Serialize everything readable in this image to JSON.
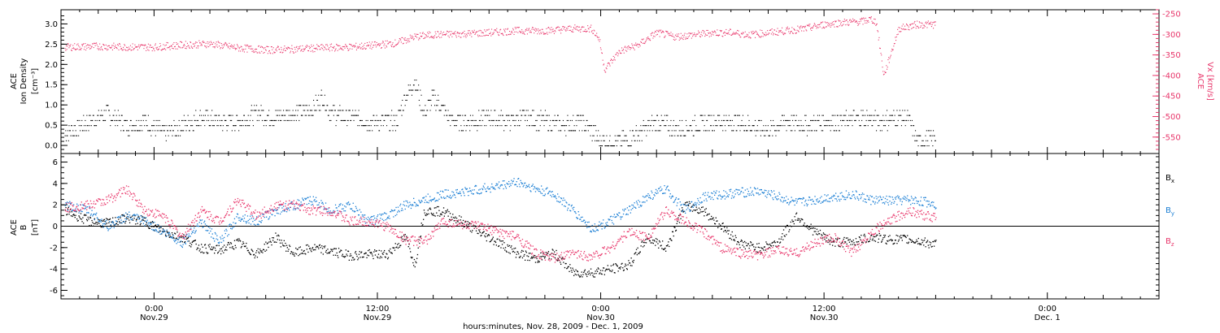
{
  "chart_data": [
    {
      "panel": "top",
      "type": "scatter",
      "ylabel_left": [
        "ACE",
        "Ion Density",
        "[cm⁻³]"
      ],
      "ylabel_right": [
        "ACE",
        "Vx [km/s]"
      ],
      "ylim_left": [
        -0.2,
        3.35
      ],
      "ylim_right": [
        -590,
        -240
      ],
      "yticks_left": [
        "0.0",
        "0.5",
        "1.0",
        "1.5",
        "2.0",
        "2.5",
        "3.0"
      ],
      "yticks_right": [
        "-250",
        "-300",
        "-350",
        "-400",
        "-450",
        "-500",
        "-550"
      ],
      "left_axis_color": "#000000",
      "right_axis_color": "#e8356a",
      "series": [
        {
          "axis": "left",
          "color": "#000000",
          "x": [
            -4.8,
            -3.5,
            -2.5,
            -1.5,
            -0.5,
            0.5,
            1.5,
            2.5,
            3.5,
            4.5,
            5.5,
            6.5,
            7.5,
            8.5,
            9.0,
            9.5,
            10.5,
            11.5,
            12.5,
            13.0,
            13.5,
            14.0,
            14.5,
            15.0,
            16.0,
            17.0,
            18.0,
            19.0,
            20.0,
            21.0,
            22.0,
            23.0,
            24.0,
            25.0,
            26.0,
            27.0,
            28.0,
            29.0,
            30.0,
            31.0,
            32.0,
            33.0,
            34.0,
            35.0,
            36.0,
            37.0,
            38.0,
            39.0,
            40.0,
            40.5,
            41.0,
            42.0
          ],
          "y": [
            0.3,
            0.6,
            0.8,
            0.5,
            0.6,
            0.3,
            0.5,
            0.7,
            0.6,
            0.6,
            0.8,
            0.7,
            0.8,
            0.9,
            1.2,
            0.8,
            0.7,
            0.6,
            0.6,
            0.6,
            1.2,
            1.6,
            0.8,
            1.2,
            0.6,
            0.6,
            0.7,
            0.6,
            0.7,
            0.6,
            0.5,
            0.6,
            0.1,
            0.1,
            0.3,
            0.6,
            0.4,
            0.5,
            0.6,
            0.6,
            0.5,
            0.4,
            0.6,
            0.5,
            0.6,
            0.6,
            0.7,
            0.6,
            0.7,
            0.7,
            0.1,
            0.2
          ]
        },
        {
          "axis": "right",
          "color": "#e8356a",
          "x": [
            -4.8,
            -3.0,
            -1.5,
            0.0,
            1.5,
            3.0,
            4.5,
            6.0,
            7.5,
            9.0,
            10.5,
            12.0,
            13.0,
            14.0,
            15.0,
            16.5,
            18.0,
            19.5,
            21.0,
            22.5,
            23.5,
            23.9,
            24.2,
            25.0,
            26.0,
            27.0,
            28.0,
            29.0,
            30.0,
            31.0,
            32.0,
            33.0,
            34.0,
            35.0,
            36.0,
            37.0,
            38.0,
            38.5,
            38.8,
            39.2,
            40.0,
            40.5,
            41.0,
            42.0
          ],
          "y": [
            -330,
            -328,
            -330,
            -330,
            -325,
            -322,
            -332,
            -337,
            -335,
            -332,
            -330,
            -325,
            -320,
            -305,
            -300,
            -298,
            -295,
            -290,
            -290,
            -285,
            -285,
            -310,
            -385,
            -340,
            -325,
            -295,
            -305,
            -300,
            -295,
            -295,
            -300,
            -295,
            -290,
            -285,
            -275,
            -270,
            -268,
            -262,
            -270,
            -400,
            -285,
            -280,
            -275,
            -275
          ]
        }
      ]
    },
    {
      "panel": "bottom",
      "type": "scatter",
      "ylabel": [
        "ACE",
        "B",
        "[nT]"
      ],
      "ylim": [
        -6.8,
        6.8
      ],
      "yticks": [
        "6",
        "4",
        "2",
        "0",
        "-2",
        "-4",
        "-6"
      ],
      "zero_line": true,
      "legend_placement": "right",
      "series": [
        {
          "name": "Bx",
          "color": "#000000",
          "x": [
            -4.8,
            -3.5,
            -2.5,
            -1.5,
            -0.5,
            0.5,
            1.5,
            2.5,
            3.5,
            4.5,
            5.5,
            6.5,
            7.5,
            8.5,
            9.5,
            10.5,
            11.5,
            12.5,
            13.5,
            14.0,
            14.5,
            15.5,
            16.5,
            17.5,
            18.5,
            19.5,
            20.5,
            21.5,
            22.5,
            23.5,
            24.5,
            25.5,
            26.5,
            27.5,
            28.5,
            29.5,
            30.5,
            31.5,
            32.5,
            33.5,
            34.5,
            35.5,
            36.5,
            37.5,
            38.5,
            39.5,
            40.5,
            41.5,
            42.0
          ],
          "y": [
            1.5,
            0.5,
            0.3,
            0.8,
            0.5,
            -0.5,
            -1.0,
            -2.0,
            -2.2,
            -1.5,
            -2.6,
            -1.0,
            -2.5,
            -2.0,
            -2.3,
            -2.7,
            -2.6,
            -2.6,
            -1.0,
            -3.6,
            1.5,
            1.4,
            0.5,
            -0.6,
            -1.5,
            -2.5,
            -3.0,
            -2.5,
            -4.3,
            -4.3,
            -4.0,
            -3.6,
            -1.0,
            -2.0,
            2.0,
            1.5,
            0.0,
            -1.6,
            -2.0,
            -1.5,
            1.0,
            -0.5,
            -1.5,
            -1.4,
            -1.0,
            -1.2,
            -1.2,
            -1.5,
            -1.7
          ]
        },
        {
          "name": "By",
          "color": "#1a7ed4",
          "x": [
            -4.8,
            -3.5,
            -2.5,
            -1.5,
            -0.5,
            0.5,
            1.5,
            2.5,
            3.5,
            4.5,
            5.5,
            6.5,
            7.5,
            8.5,
            9.5,
            10.5,
            11.5,
            12.5,
            13.5,
            14.5,
            15.5,
            16.5,
            17.5,
            18.5,
            19.5,
            20.5,
            21.5,
            22.5,
            23.5,
            24.5,
            25.5,
            26.5,
            27.5,
            28.5,
            29.5,
            30.5,
            31.5,
            32.5,
            33.5,
            34.5,
            35.5,
            36.5,
            37.5,
            38.5,
            39.5,
            40.5,
            41.5,
            42.0
          ],
          "y": [
            2.0,
            1.5,
            0.0,
            1.0,
            0.5,
            -0.5,
            -1.5,
            0.5,
            -1.5,
            1.0,
            0.5,
            1.5,
            2.0,
            2.5,
            1.5,
            2.0,
            0.5,
            1.0,
            2.0,
            2.5,
            3.0,
            3.2,
            3.5,
            3.8,
            4.2,
            3.5,
            3.0,
            1.5,
            -0.2,
            0.5,
            1.5,
            2.8,
            3.5,
            1.5,
            2.8,
            3.0,
            3.2,
            3.3,
            2.8,
            2.2,
            2.5,
            2.8,
            3.0,
            2.5,
            2.4,
            2.5,
            2.3,
            2.1
          ]
        },
        {
          "name": "Bz",
          "color": "#e8356a",
          "x": [
            -4.8,
            -3.5,
            -2.5,
            -1.5,
            -0.5,
            0.5,
            1.5,
            2.5,
            3.5,
            4.5,
            5.5,
            6.5,
            7.5,
            8.5,
            9.5,
            10.5,
            11.5,
            12.5,
            13.5,
            14.5,
            15.5,
            16.5,
            17.5,
            18.5,
            19.5,
            20.5,
            21.5,
            22.5,
            23.5,
            24.5,
            25.5,
            26.5,
            27.5,
            28.5,
            29.5,
            30.5,
            31.5,
            32.5,
            33.5,
            34.5,
            35.5,
            36.5,
            37.5,
            38.5,
            39.5,
            40.5,
            41.5,
            42.0
          ],
          "y": [
            1.8,
            2.0,
            2.5,
            3.5,
            1.5,
            1.0,
            -1.0,
            1.5,
            0.5,
            2.5,
            1.0,
            2.0,
            2.0,
            1.5,
            1.5,
            0.5,
            0.5,
            0.0,
            -1.2,
            -1.5,
            0.5,
            0.2,
            0.0,
            -0.5,
            -1.0,
            -2.5,
            -3.0,
            -2.5,
            -2.8,
            -2.0,
            -0.5,
            -1.0,
            1.5,
            0.5,
            -0.5,
            -2.0,
            -2.5,
            -2.7,
            -2.2,
            -2.5,
            -1.5,
            -1.0,
            -2.5,
            -0.5,
            0.5,
            1.5,
            1.0,
            0.8
          ]
        }
      ]
    }
  ],
  "x_axis": {
    "range_hours": [
      -5.0,
      54.0
    ],
    "ticks": [
      {
        "hour": 0,
        "time": "0:00",
        "date": "Nov.29"
      },
      {
        "hour": 12,
        "time": "12:00",
        "date": "Nov.29"
      },
      {
        "hour": 24,
        "time": "0:00",
        "date": "Nov.30"
      },
      {
        "hour": 36,
        "time": "12:00",
        "date": "Nov.30"
      },
      {
        "hour": 48,
        "time": "0:00",
        "date": "Dec. 1"
      }
    ],
    "xlabel": "hours:minutes, Nov. 28, 2009 - Dec.  1, 2009"
  },
  "legend": {
    "bx": {
      "label": "B",
      "sub": "x",
      "color": "#000000"
    },
    "by": {
      "label": "B",
      "sub": "y",
      "color": "#1a7ed4"
    },
    "bz": {
      "label": "B",
      "sub": "z",
      "color": "#e8356a"
    }
  }
}
